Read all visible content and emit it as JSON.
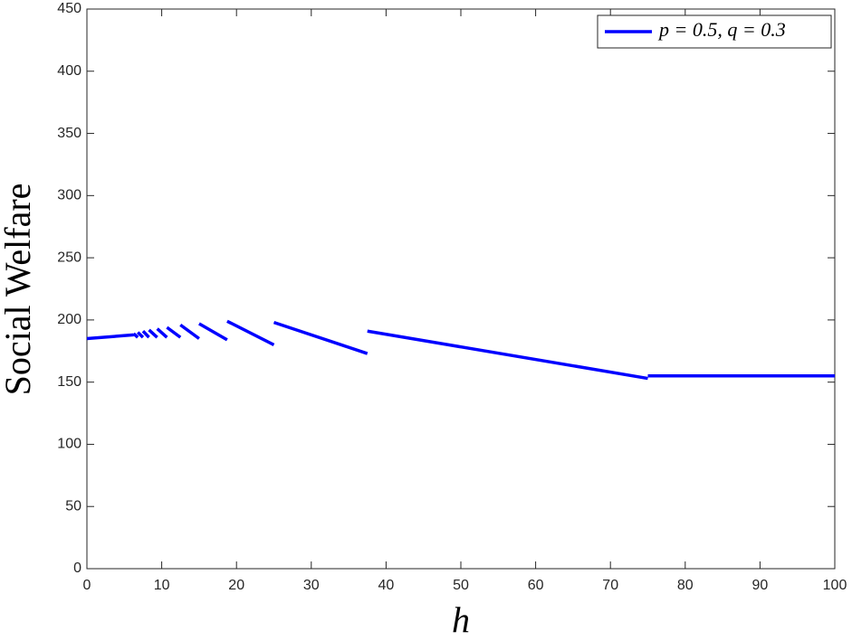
{
  "chart_data": {
    "type": "line",
    "x_label": "h",
    "y_label": "Social Welfare",
    "x": [
      0,
      6.25,
      null,
      6.25,
      6.8,
      null,
      6.8,
      7.5,
      null,
      7.5,
      8.3,
      null,
      8.3,
      9.4,
      null,
      9.4,
      10.7,
      null,
      10.7,
      12.5,
      null,
      12.5,
      15,
      null,
      15,
      18.75,
      null,
      18.75,
      25,
      null,
      25,
      37.5,
      null,
      37.5,
      75,
      null,
      75,
      100
    ],
    "series": [
      {
        "name": "p = 0.5, q = 0.3",
        "color": "#0000ff",
        "values": [
          185,
          188,
          null,
          189,
          186,
          null,
          190,
          186,
          null,
          191,
          186,
          null,
          192,
          186,
          null,
          193,
          186,
          null,
          194,
          186,
          null,
          196,
          185,
          null,
          197,
          184,
          null,
          199,
          180,
          null,
          198,
          173,
          null,
          191,
          153,
          null,
          155,
          155
        ]
      }
    ],
    "xlim": [
      0,
      100
    ],
    "xticks": [
      0,
      10,
      20,
      30,
      40,
      50,
      60,
      70,
      80,
      90,
      100
    ],
    "ylim": [
      0,
      450
    ],
    "yticks": [
      0,
      50,
      100,
      150,
      200,
      250,
      300,
      350,
      400,
      450
    ],
    "legend": "upper right",
    "grid": false
  }
}
